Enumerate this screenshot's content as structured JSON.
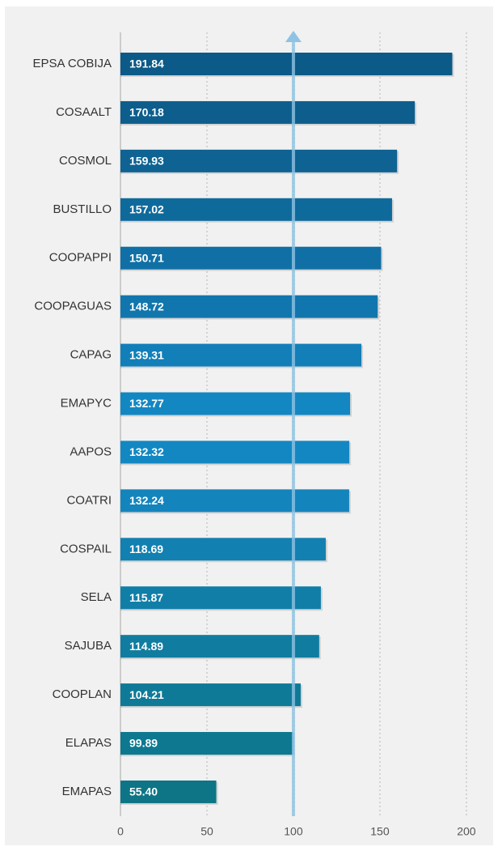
{
  "chart_data": {
    "type": "bar",
    "orientation": "horizontal",
    "categories": [
      "EPSA COBIJA",
      "COSAALT",
      "COSMOL",
      "BUSTILLO",
      "COOPAPPI",
      "COOPAGUAS",
      "CAPAG",
      "EMAPYC",
      "AAPOS",
      "COATRI",
      "COSPAIL",
      "SELA",
      "SAJUBA",
      "COOPLAN",
      "ELAPAS",
      "EMAPAS"
    ],
    "values": [
      191.84,
      170.18,
      159.93,
      157.02,
      150.71,
      148.72,
      139.31,
      132.77,
      132.32,
      132.24,
      118.69,
      115.87,
      114.89,
      104.21,
      99.89,
      55.4
    ],
    "value_labels": [
      "191.84",
      "170.18",
      "159.93",
      "157.02",
      "150.71",
      "148.72",
      "139.31",
      "132.77",
      "132.32",
      "132.24",
      "118.69",
      "115.87",
      "114.89",
      "104.21",
      "99.89",
      "55.40"
    ],
    "colors": [
      "#0c5a87",
      "#0d5e8c",
      "#0e6393",
      "#0f6a9c",
      "#1070a6",
      "#1176ad",
      "#127fb8",
      "#1387c2",
      "#1387c2",
      "#1484bd",
      "#1280b0",
      "#117ea8",
      "#107ca0",
      "#0f7a98",
      "#0e7890",
      "#0d7585"
    ],
    "xlim": [
      0,
      215
    ],
    "xticks": [
      0,
      50,
      100,
      150,
      200
    ],
    "grid": true,
    "reference_line": 100,
    "reference_color": "#8fc3e3"
  }
}
